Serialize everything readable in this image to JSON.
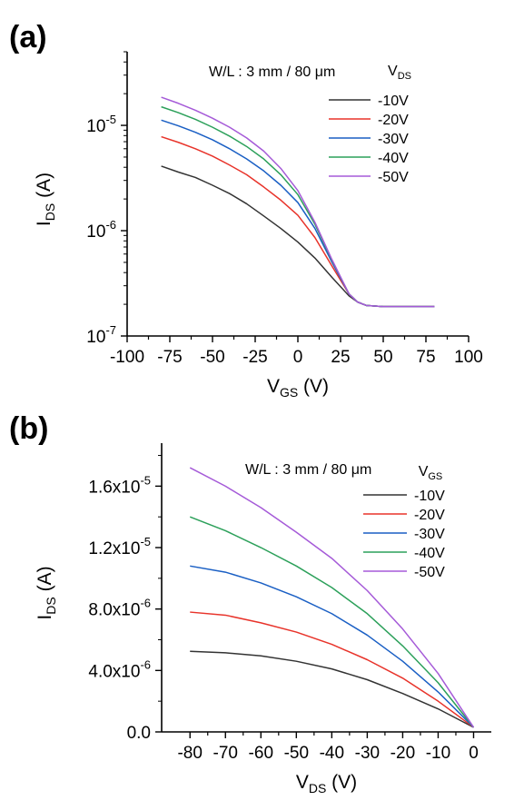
{
  "chart_data": [
    {
      "panel_label": "(a)",
      "type": "line",
      "yscale": "log",
      "annotation": "W/L : 3 mm / 80 μm",
      "xlabel": {
        "main": "V",
        "sub": "GS",
        "unit": " (V)"
      },
      "ylabel": {
        "main": "I",
        "sub": "DS",
        "unit": " (A)"
      },
      "xlim": [
        -100,
        100
      ],
      "ylim": [
        1e-07,
        5e-05
      ],
      "xticks": [
        -100,
        -75,
        -50,
        -25,
        0,
        25,
        50,
        75,
        100
      ],
      "yticks": [
        {
          "value": 1e-07,
          "base": "10",
          "exp": "-7"
        },
        {
          "value": 1e-06,
          "base": "10",
          "exp": "-6"
        },
        {
          "value": 1e-05,
          "base": "10",
          "exp": "-5"
        }
      ],
      "legend": {
        "title_main": "V",
        "title_sub": "DS",
        "position": "top-right"
      },
      "series": [
        {
          "name": "-10V",
          "color": "#333333",
          "x": [
            -80,
            -70,
            -60,
            -50,
            -40,
            -30,
            -20,
            -10,
            0,
            10,
            20,
            30,
            35,
            40,
            50,
            60,
            70,
            80
          ],
          "y": [
            4.1e-06,
            3.6e-06,
            3.2e-06,
            2.7e-06,
            2.25e-06,
            1.8e-06,
            1.38e-06,
            1.05e-06,
            7.8e-07,
            5.5e-07,
            3.6e-07,
            2.4e-07,
            2.1e-07,
            1.95e-07,
            1.9e-07,
            1.9e-07,
            1.9e-07,
            1.9e-07
          ]
        },
        {
          "name": "-20V",
          "color": "#e8332a",
          "x": [
            -80,
            -70,
            -60,
            -50,
            -40,
            -30,
            -20,
            -10,
            0,
            10,
            20,
            30,
            35,
            40,
            50,
            60,
            70,
            80
          ],
          "y": [
            7.8e-06,
            6.9e-06,
            6e-06,
            5.1e-06,
            4.2e-06,
            3.4e-06,
            2.6e-06,
            1.95e-06,
            1.4e-06,
            8.6e-07,
            4.6e-07,
            2.5e-07,
            2.1e-07,
            1.95e-07,
            1.9e-07,
            1.9e-07,
            1.9e-07,
            1.9e-07
          ]
        },
        {
          "name": "-30V",
          "color": "#1a5fc4",
          "x": [
            -80,
            -70,
            -60,
            -50,
            -40,
            -30,
            -20,
            -10,
            0,
            10,
            20,
            30,
            35,
            40,
            50,
            60,
            70,
            80
          ],
          "y": [
            1.12e-05,
            9.9e-06,
            8.6e-06,
            7.3e-06,
            6e-06,
            4.8e-06,
            3.7e-06,
            2.7e-06,
            1.85e-06,
            1.05e-06,
            5e-07,
            2.5e-07,
            2.1e-07,
            1.95e-07,
            1.9e-07,
            1.9e-07,
            1.9e-07,
            1.9e-07
          ]
        },
        {
          "name": "-40V",
          "color": "#2ca05a",
          "x": [
            -80,
            -70,
            -60,
            -50,
            -40,
            -30,
            -20,
            -10,
            0,
            10,
            20,
            30,
            35,
            40,
            50,
            60,
            70,
            80
          ],
          "y": [
            1.5e-05,
            1.32e-05,
            1.14e-05,
            9.6e-06,
            7.9e-06,
            6.3e-06,
            4.8e-06,
            3.4e-06,
            2.2e-06,
            1.15e-06,
            5.2e-07,
            2.5e-07,
            2.1e-07,
            1.95e-07,
            1.9e-07,
            1.9e-07,
            1.9e-07,
            1.9e-07
          ]
        },
        {
          "name": "-50V",
          "color": "#a55ad8",
          "x": [
            -80,
            -70,
            -60,
            -50,
            -40,
            -30,
            -20,
            -10,
            0,
            10,
            20,
            30,
            35,
            40,
            50,
            60,
            70,
            80
          ],
          "y": [
            1.85e-05,
            1.62e-05,
            1.39e-05,
            1.17e-05,
            9.6e-06,
            7.6e-06,
            5.7e-06,
            3.9e-06,
            2.4e-06,
            1.2e-06,
            5.3e-07,
            2.5e-07,
            2.1e-07,
            1.95e-07,
            1.9e-07,
            1.9e-07,
            1.9e-07,
            1.9e-07
          ]
        }
      ]
    },
    {
      "panel_label": "(b)",
      "type": "line",
      "yscale": "linear",
      "annotation": "W/L : 3 mm / 80 μm",
      "xlabel": {
        "main": "V",
        "sub": "DS",
        "unit": " (V)"
      },
      "ylabel": {
        "main": "I",
        "sub": "DS",
        "unit": " (A)"
      },
      "xlim": [
        -88,
        5
      ],
      "ylim": [
        0,
        1.88e-05
      ],
      "xticks": [
        -80,
        -70,
        -60,
        -50,
        -40,
        -30,
        -20,
        -10,
        0
      ],
      "yticks": [
        {
          "value": 0,
          "base": "0.0",
          "exp": ""
        },
        {
          "value": 4e-06,
          "base": "4.0x10",
          "exp": "-6"
        },
        {
          "value": 8e-06,
          "base": "8.0x10",
          "exp": "-6"
        },
        {
          "value": 1.2e-05,
          "base": "1.2x10",
          "exp": "-5"
        },
        {
          "value": 1.6e-05,
          "base": "1.6x10",
          "exp": "-5"
        }
      ],
      "legend": {
        "title_main": "V",
        "title_sub": "GS",
        "position": "top-right"
      },
      "series": [
        {
          "name": "-10V",
          "color": "#333333",
          "x": [
            -80,
            -70,
            -60,
            -50,
            -40,
            -30,
            -20,
            -10,
            0
          ],
          "y": [
            5.25e-06,
            5.15e-06,
            4.95e-06,
            4.6e-06,
            4.1e-06,
            3.4e-06,
            2.5e-06,
            1.5e-06,
            3e-07
          ]
        },
        {
          "name": "-20V",
          "color": "#e8332a",
          "x": [
            -80,
            -70,
            -60,
            -50,
            -40,
            -30,
            -20,
            -10,
            0
          ],
          "y": [
            7.8e-06,
            7.6e-06,
            7.1e-06,
            6.5e-06,
            5.7e-06,
            4.7e-06,
            3.5e-06,
            2e-06,
            3e-07
          ]
        },
        {
          "name": "-30V",
          "color": "#1a5fc4",
          "x": [
            -80,
            -70,
            -60,
            -50,
            -40,
            -30,
            -20,
            -10,
            0
          ],
          "y": [
            1.08e-05,
            1.04e-05,
            9.7e-06,
            8.8e-06,
            7.7e-06,
            6.3e-06,
            4.6e-06,
            2.6e-06,
            3e-07
          ]
        },
        {
          "name": "-40V",
          "color": "#2ca05a",
          "x": [
            -80,
            -70,
            -60,
            -50,
            -40,
            -30,
            -20,
            -10,
            0
          ],
          "y": [
            1.4e-05,
            1.31e-05,
            1.2e-05,
            1.08e-05,
            9.4e-06,
            7.7e-06,
            5.6e-06,
            3.2e-06,
            3e-07
          ]
        },
        {
          "name": "-50V",
          "color": "#a55ad8",
          "x": [
            -80,
            -70,
            -60,
            -50,
            -40,
            -30,
            -20,
            -10,
            0
          ],
          "y": [
            1.72e-05,
            1.6e-05,
            1.46e-05,
            1.3e-05,
            1.13e-05,
            9.2e-06,
            6.7e-06,
            3.8e-06,
            3e-07
          ]
        }
      ]
    }
  ]
}
